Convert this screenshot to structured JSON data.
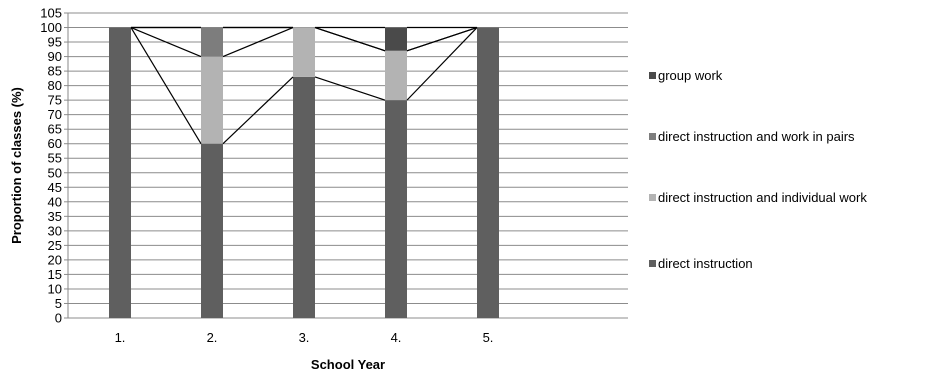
{
  "chart_data": {
    "type": "bar",
    "stacked": true,
    "title": "",
    "xlabel": "School Year",
    "ylabel": "Proportion of classes (%)",
    "categories": [
      "1.",
      "2.",
      "3.",
      "4.",
      "5."
    ],
    "ylim": [
      0,
      105
    ],
    "y_step": 5,
    "grid": true,
    "legend_position": "right",
    "series_lines": true,
    "series": [
      {
        "name": "direct instruction",
        "color": "#5f5f5f",
        "values": [
          100,
          60,
          83,
          75,
          100
        ]
      },
      {
        "name": "direct instruction and individual work",
        "color": "#b3b3b3",
        "values": [
          0,
          30,
          17,
          17,
          0
        ]
      },
      {
        "name": "direct instruction and work in pairs",
        "color": "#7d7d7d",
        "values": [
          0,
          10,
          0,
          0,
          0
        ]
      },
      {
        "name": "group work",
        "color": "#4a4a4a",
        "values": [
          0,
          0,
          0,
          8,
          0
        ]
      }
    ]
  }
}
